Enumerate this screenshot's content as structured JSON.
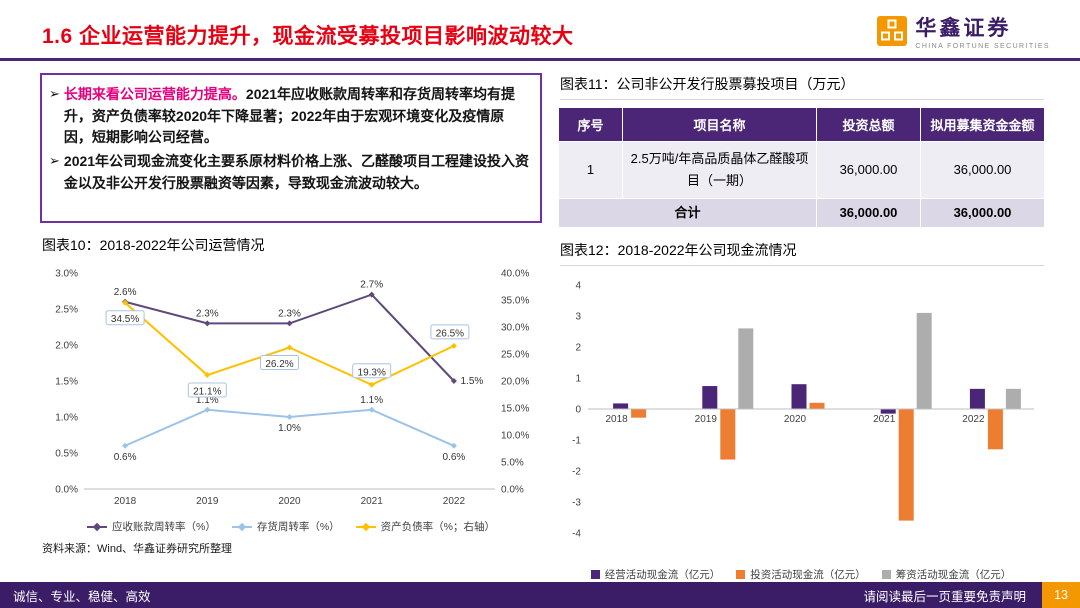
{
  "header": {
    "title": "1.6 企业运营能力提升，现金流受募投项目影响波动较大",
    "logo_text": "华鑫证券",
    "logo_subtext": "CHINA FORTUNE SECURITIES"
  },
  "summary_box": {
    "bullet_glyph": "➢",
    "bullet1_highlight": "长期来看公司运营能力提高。",
    "bullet1_rest": "2021年应收账款周转率和存货周转率均有提升，资产负债率较2020年下降显著；2022年由于宏观环境变化及疫情原因，短期影响公司经营。",
    "bullet2": "2021年公司现金流变化主要系原材料价格上涨、乙醛酸项目工程建设投入资金以及非公开发行股票融资等因素，导致现金流波动较大。"
  },
  "table11": {
    "caption": "图表11：公司非公开发行股票募投项目（万元）",
    "headers": [
      "序号",
      "项目名称",
      "投资总额",
      "拟用募集资金金额"
    ],
    "rows": [
      [
        "1",
        "2.5万吨/年高品质晶体乙醛酸项目（一期）",
        "36,000.00",
        "36,000.00"
      ]
    ],
    "total_row": [
      "合计",
      "36,000.00",
      "36,000.00"
    ]
  },
  "source": "资料来源：Wind、华鑫证券研究所整理",
  "footer": {
    "left": "诚信、专业、稳健、高效",
    "right": "请阅读最后一页重要免责声明",
    "page": "13"
  },
  "colors": {
    "theme_purple": "#4B2576",
    "footer_purple": "#3A1D66",
    "title_red": "#E60012",
    "highlight_pink": "#E6007E",
    "page_box_orange": "#F39800"
  },
  "chart_data": [
    {
      "id": "chart10-operations",
      "type": "line",
      "title": "图表10：2018-2022年公司运营情况",
      "categories": [
        "2018",
        "2019",
        "2020",
        "2021",
        "2022"
      ],
      "series": [
        {
          "name": "应收账款周转率（%）",
          "axis": "left",
          "color": "#5F497A",
          "values": [
            2.6,
            2.3,
            2.3,
            2.7,
            1.5
          ]
        },
        {
          "name": "存货周转率（%）",
          "axis": "left",
          "color": "#9DC3E6",
          "values": [
            0.6,
            1.1,
            1.0,
            1.1,
            0.6
          ]
        },
        {
          "name": "资产负债率（%；右轴）",
          "axis": "right",
          "color": "#FFC000",
          "values": [
            34.5,
            21.1,
            26.2,
            19.3,
            26.5
          ],
          "boxed_labels": true
        }
      ],
      "left_axis": {
        "min": 0,
        "max": 3,
        "step": 0.5,
        "unit": "%"
      },
      "right_axis": {
        "min": 0,
        "max": 40,
        "step": 5,
        "unit": "%"
      },
      "legend_position": "bottom",
      "grid": false
    },
    {
      "id": "chart12-cashflow",
      "type": "bar",
      "title": "图表12：2018-2022年公司现金流情况",
      "categories": [
        "2018",
        "2019",
        "2020",
        "2021",
        "2022"
      ],
      "series": [
        {
          "name": "经营活动现金流（亿元）",
          "color": "#4B2576",
          "values": [
            0.18,
            0.74,
            0.8,
            -0.15,
            0.65
          ]
        },
        {
          "name": "投资活动现金流（亿元）",
          "color": "#ED7D31",
          "values": [
            -0.28,
            -1.63,
            0.2,
            -3.6,
            -1.3
          ]
        },
        {
          "name": "筹资活动现金流（亿元）",
          "color": "#ADADAD",
          "values": [
            0,
            2.6,
            0,
            3.1,
            0.65
          ]
        }
      ],
      "y_axis": {
        "min": -4,
        "max": 4,
        "step": 1
      },
      "legend_position": "bottom",
      "grid": false
    }
  ]
}
